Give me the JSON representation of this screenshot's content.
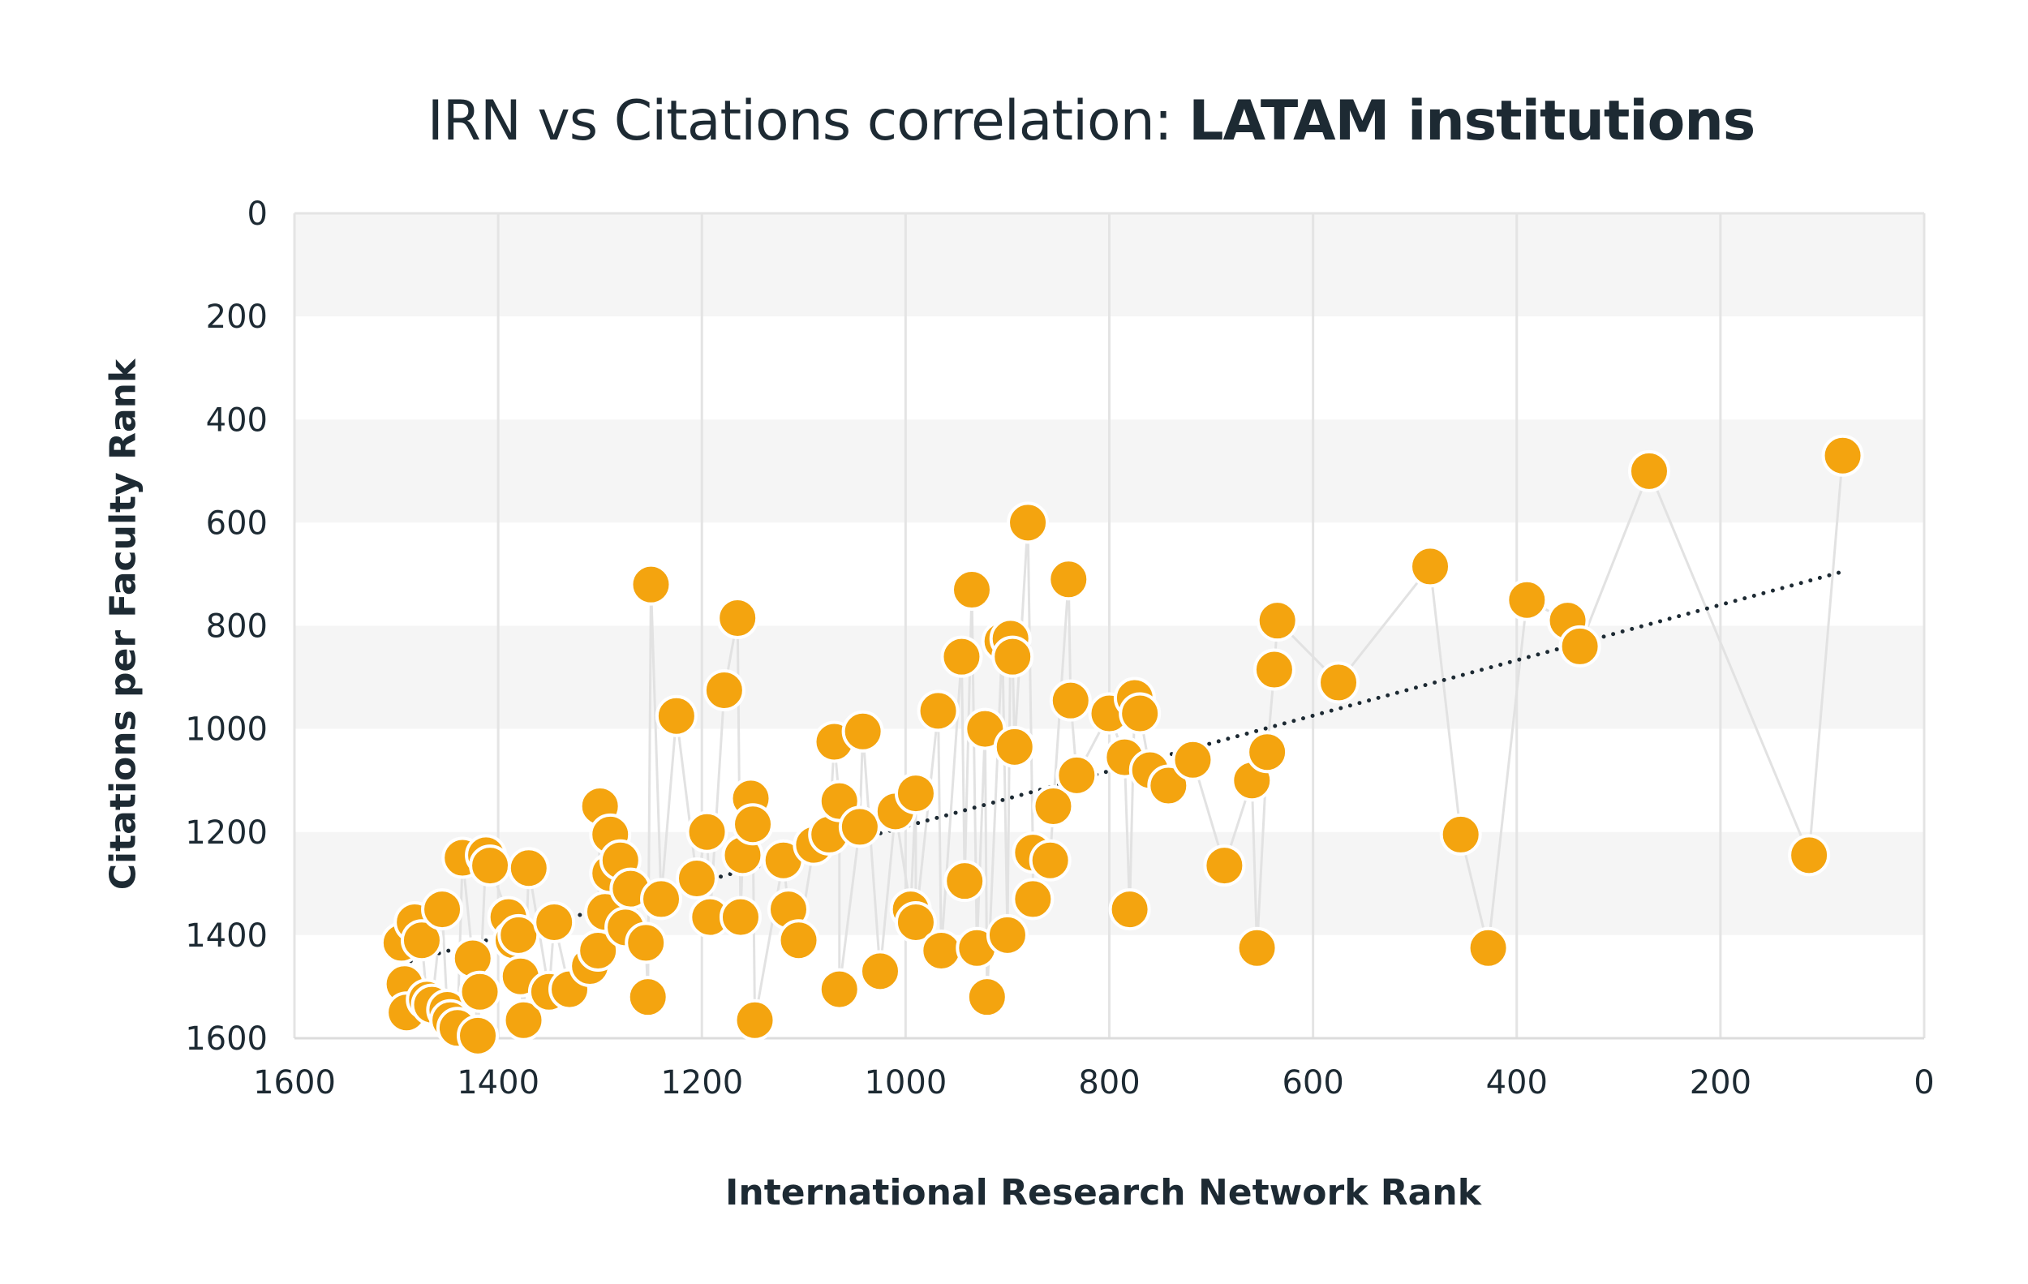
{
  "title": {
    "regular": "IRN vs Citations correlation: ",
    "bold": "LATAM institutions"
  },
  "chart_data": {
    "type": "scatter",
    "title": "IRN vs Citations correlation: LATAM institutions",
    "xlabel": "International Research Network Rank",
    "ylabel": "Citations per Faculty Rank",
    "xlim": [
      1600,
      0
    ],
    "ylim": [
      1600,
      0
    ],
    "x_reversed": true,
    "y_reversed": true,
    "xticks": [
      "1600",
      "1400",
      "1200",
      "1000",
      "800",
      "600",
      "400",
      "200",
      "0"
    ],
    "yticks": [
      "0",
      "200",
      "400",
      "600",
      "800",
      "1000",
      "1200",
      "1400",
      "1600"
    ],
    "grid": "vertical lines, alternating horizontal bands",
    "trendline": {
      "style": "dotted",
      "from": [
        1495,
        1455
      ],
      "to": [
        80,
        695
      ]
    },
    "connecting_line": true,
    "points": [
      [
        1495,
        1415
      ],
      [
        1492,
        1495
      ],
      [
        1490,
        1550
      ],
      [
        1482,
        1375
      ],
      [
        1475,
        1410
      ],
      [
        1470,
        1525
      ],
      [
        1465,
        1535
      ],
      [
        1455,
        1350
      ],
      [
        1450,
        1545
      ],
      [
        1447,
        1565
      ],
      [
        1440,
        1580
      ],
      [
        1435,
        1250
      ],
      [
        1425,
        1445
      ],
      [
        1420,
        1595
      ],
      [
        1418,
        1510
      ],
      [
        1412,
        1245
      ],
      [
        1408,
        1265
      ],
      [
        1390,
        1365
      ],
      [
        1385,
        1410
      ],
      [
        1380,
        1400
      ],
      [
        1378,
        1480
      ],
      [
        1375,
        1565
      ],
      [
        1370,
        1270
      ],
      [
        1350,
        1510
      ],
      [
        1345,
        1375
      ],
      [
        1330,
        1505
      ],
      [
        1310,
        1460
      ],
      [
        1302,
        1430
      ],
      [
        1300,
        1150
      ],
      [
        1295,
        1355
      ],
      [
        1290,
        1205
      ],
      [
        1290,
        1280
      ],
      [
        1280,
        1255
      ],
      [
        1275,
        1385
      ],
      [
        1270,
        1310
      ],
      [
        1255,
        1415
      ],
      [
        1253,
        1520
      ],
      [
        1250,
        720
      ],
      [
        1240,
        1330
      ],
      [
        1225,
        975
      ],
      [
        1205,
        1290
      ],
      [
        1195,
        1200
      ],
      [
        1192,
        1365
      ],
      [
        1178,
        925
      ],
      [
        1165,
        785
      ],
      [
        1162,
        1365
      ],
      [
        1160,
        1245
      ],
      [
        1152,
        1135
      ],
      [
        1150,
        1185
      ],
      [
        1148,
        1565
      ],
      [
        1120,
        1255
      ],
      [
        1115,
        1350
      ],
      [
        1105,
        1410
      ],
      [
        1090,
        1225
      ],
      [
        1075,
        1205
      ],
      [
        1070,
        1025
      ],
      [
        1065,
        1140
      ],
      [
        1065,
        1505
      ],
      [
        1045,
        1190
      ],
      [
        1042,
        1005
      ],
      [
        1025,
        1470
      ],
      [
        1010,
        1160
      ],
      [
        990,
        1125
      ],
      [
        995,
        1350
      ],
      [
        990,
        1375
      ],
      [
        968,
        965
      ],
      [
        965,
        1430
      ],
      [
        945,
        860
      ],
      [
        942,
        1295
      ],
      [
        935,
        730
      ],
      [
        930,
        1425
      ],
      [
        922,
        1000
      ],
      [
        920,
        1520
      ],
      [
        905,
        830
      ],
      [
        900,
        1400
      ],
      [
        897,
        825
      ],
      [
        895,
        860
      ],
      [
        893,
        1035
      ],
      [
        880,
        600
      ],
      [
        875,
        1240
      ],
      [
        875,
        1330
      ],
      [
        858,
        1255
      ],
      [
        855,
        1150
      ],
      [
        838,
        945
      ],
      [
        840,
        710
      ],
      [
        832,
        1090
      ],
      [
        800,
        970
      ],
      [
        785,
        1055
      ],
      [
        780,
        1350
      ],
      [
        775,
        940
      ],
      [
        770,
        970
      ],
      [
        760,
        1080
      ],
      [
        742,
        1110
      ],
      [
        718,
        1060
      ],
      [
        687,
        1265
      ],
      [
        660,
        1100
      ],
      [
        655,
        1425
      ],
      [
        645,
        1045
      ],
      [
        638,
        885
      ],
      [
        635,
        790
      ],
      [
        575,
        910
      ],
      [
        485,
        685
      ],
      [
        455,
        1205
      ],
      [
        428,
        1425
      ],
      [
        390,
        750
      ],
      [
        350,
        790
      ],
      [
        338,
        840
      ],
      [
        270,
        500
      ],
      [
        113,
        1245
      ],
      [
        80,
        470
      ]
    ]
  }
}
